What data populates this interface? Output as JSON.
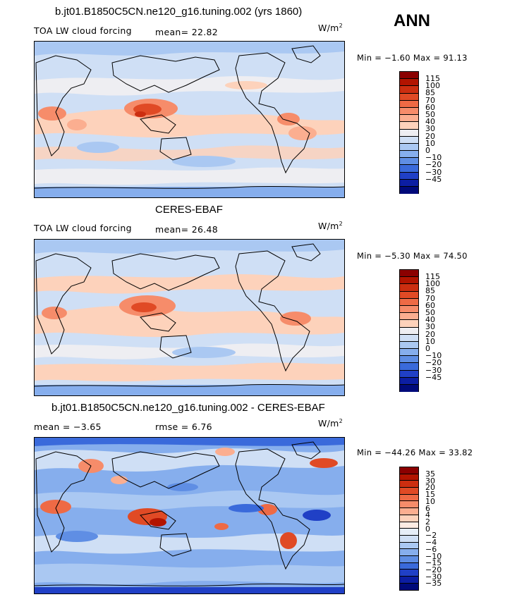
{
  "season": "ANN",
  "units_base": "W/m",
  "units_exp": "2",
  "panels": [
    {
      "title": "b.jt01.B1850C5CN.ne120_g16.tuning.002 (yrs 1860)",
      "left_label": "TOA LW cloud forcing",
      "mid_label": "mean=  22.82",
      "minmax": "Min =  −1.60 Max =  91.13",
      "colorbar": {
        "labels": [
          "115",
          "100",
          "85",
          "70",
          "60",
          "50",
          "40",
          "30",
          "20",
          "10",
          "0",
          "−10",
          "−20",
          "−30",
          "−45"
        ],
        "colors": [
          "#8b0000",
          "#b21400",
          "#cc2e10",
          "#e04a25",
          "#ee6a45",
          "#f68c6a",
          "#fbae90",
          "#fdd2bb",
          "#eeeef2",
          "#cfdff5",
          "#aac8f2",
          "#86aeed",
          "#5f8ee4",
          "#3a6adb",
          "#2040c6",
          "#0c1ea3",
          "#000a7a"
        ]
      }
    },
    {
      "title": "CERES-EBAF",
      "left_label": "TOA LW cloud forcing",
      "mid_label": "mean=  26.48",
      "minmax": "Min =  −5.30 Max =  74.50",
      "colorbar": {
        "labels": [
          "115",
          "100",
          "85",
          "70",
          "60",
          "50",
          "40",
          "30",
          "20",
          "10",
          "0",
          "−10",
          "−20",
          "−30",
          "−45"
        ],
        "colors": [
          "#8b0000",
          "#b21400",
          "#cc2e10",
          "#e04a25",
          "#ee6a45",
          "#f68c6a",
          "#fbae90",
          "#fdd2bb",
          "#eeeef2",
          "#cfdff5",
          "#aac8f2",
          "#86aeed",
          "#5f8ee4",
          "#3a6adb",
          "#2040c6",
          "#0c1ea3",
          "#000a7a"
        ]
      }
    },
    {
      "title": "b.jt01.B1850C5CN.ne120_g16.tuning.002 - CERES-EBAF",
      "left_label": "mean =   −3.65",
      "mid_label": "rmse =   6.76",
      "minmax": "Min = −44.26 Max =  33.82",
      "colorbar": {
        "labels": [
          "35",
          "30",
          "20",
          "15",
          "10",
          "6",
          "4",
          "2",
          "0",
          "−2",
          "−4",
          "−6",
          "−10",
          "−15",
          "−20",
          "−30",
          "−35"
        ],
        "colors": [
          "#8b0000",
          "#b21400",
          "#cc2e10",
          "#e04a25",
          "#ee6a45",
          "#f68c6a",
          "#fbae90",
          "#fdd2bb",
          "#fdece3",
          "#e6eef8",
          "#cfdff5",
          "#aac8f2",
          "#86aeed",
          "#5f8ee4",
          "#3a6adb",
          "#2040c6",
          "#0c1ea3",
          "#000a7a"
        ]
      }
    }
  ]
}
